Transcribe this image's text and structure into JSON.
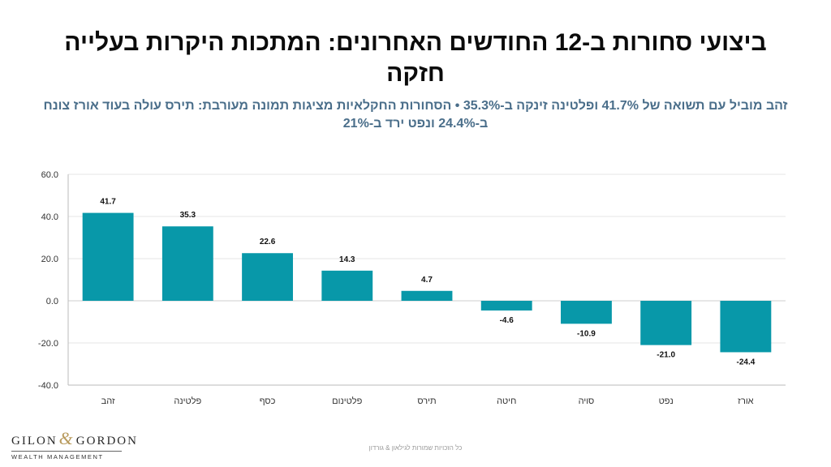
{
  "header": {
    "title": "ביצועי סחורות ב-12 החודשים האחרונים: המתכות היקרות בעלייה חזקה",
    "subtitle": "זהב מוביל עם תשואה של 41.7% ופלטינה זינקה ב-35.3% • הסחורות החקלאיות מציגות תמונה מעורבת: תירס עולה בעוד אורז צונח ב-24.4% ונפט ירד ב-21%"
  },
  "chart_data": {
    "type": "bar",
    "categories": [
      "זהב",
      "פלטינה",
      "כסף",
      "פלטינום",
      "תירס",
      "חיטה",
      "סויה",
      "נפט",
      "אורז"
    ],
    "values": [
      41.7,
      35.3,
      22.6,
      14.3,
      4.7,
      -4.6,
      -10.9,
      -21.0,
      -24.4
    ],
    "ylim": [
      -40,
      60
    ],
    "yticks": [
      -40,
      -20,
      0,
      20,
      40,
      60
    ],
    "bar_color": "#0898a9",
    "grid": true,
    "data_labels": true
  },
  "brand": {
    "logo_left": "GILON",
    "logo_amp": "&",
    "logo_right": "GORDON",
    "logo_sub": "WEALTH MANAGEMENT"
  },
  "footer": {
    "text": "כל הזכויות שמורות לגילאון & גורדון"
  }
}
